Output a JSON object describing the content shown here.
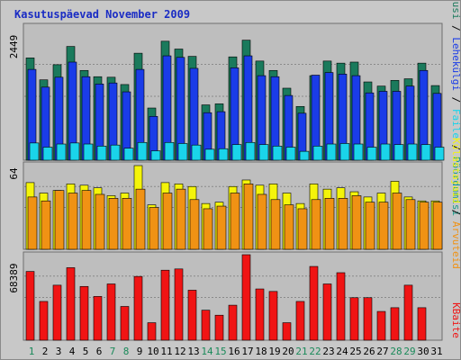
{
  "page": {
    "title": "Kasutuspäevad November 2009"
  },
  "chart_data": {
    "type": "bar",
    "title": "Kasutuspäevad November 2009",
    "categories": [
      "1",
      "2",
      "3",
      "4",
      "5",
      "6",
      "7",
      "8",
      "9",
      "10",
      "11",
      "12",
      "13",
      "14",
      "15",
      "16",
      "17",
      "18",
      "19",
      "20",
      "21",
      "22",
      "23",
      "24",
      "25",
      "26",
      "27",
      "28",
      "29",
      "30",
      "31"
    ],
    "weekend_days": [
      "1",
      "7",
      "8",
      "14",
      "15",
      "21",
      "22",
      "28",
      "29"
    ],
    "panels": [
      {
        "name": "traffic",
        "max_label": "2449",
        "ylim": [
          0,
          2449
        ],
        "series": [
          {
            "name": "Külastusi",
            "color": "#1a7a5c",
            "values": [
              1960,
              1540,
              1830,
              2180,
              1720,
              1600,
              1590,
              1450,
              2050,
              1000,
              2280,
              2130,
              1990,
              1060,
              1080,
              1980,
              2300,
              1900,
              1720,
              1380,
              1030,
              1620,
              1900,
              1860,
              1880,
              1500,
              1420,
              1530,
              1560,
              1860,
              1430
            ]
          },
          {
            "name": "Lehekülgi",
            "color": "#1a3ce8",
            "values": [
              1740,
              1400,
              1590,
              1880,
              1600,
              1460,
              1480,
              1310,
              1740,
              840,
              2000,
              1970,
              1760,
              910,
              930,
              1770,
              2000,
              1620,
              1600,
              1240,
              900,
              1630,
              1680,
              1650,
              1620,
              1290,
              1320,
              1320,
              1420,
              1720,
              1280
            ]
          },
          {
            "name": "Faile",
            "color": "#1ad4ea",
            "values": [
              330,
              250,
              310,
              330,
              310,
              270,
              290,
              230,
              340,
              180,
              340,
              320,
              290,
              210,
              220,
              300,
              340,
              300,
              270,
              250,
              170,
              270,
              310,
              320,
              310,
              250,
              310,
              300,
              310,
              300,
              250
            ]
          }
        ],
        "legend": [
          "Külastusi",
          "Lehekülgi",
          "Faile",
          "Pöördumisi"
        ]
      },
      {
        "name": "hosts",
        "max_label": "64",
        "ylim": [
          0,
          64
        ],
        "series": [
          {
            "name": "Külastajaid",
            "color": "#f4f40a",
            "values": [
              51,
              43,
              45,
              50,
              49,
              47,
              41,
              43,
              64,
              34,
              51,
              50,
              48,
              35,
              36,
              48,
              53,
              49,
              50,
              43,
              35,
              50,
              46,
              47,
              44,
              40,
              43,
              52,
              40,
              37,
              37
            ]
          },
          {
            "name": "Arvuteid",
            "color": "#f09214",
            "values": [
              40,
              37,
              45,
              43,
              45,
              42,
              39,
              39,
              46,
              32,
              43,
              46,
              38,
              31,
              33,
              43,
              50,
              42,
              38,
              34,
              31,
              38,
              39,
              39,
              41,
              36,
              36,
              43,
              38,
              36,
              36
            ]
          }
        ],
        "legend": [
          "Külastajaid",
          "Arvuteid"
        ]
      },
      {
        "name": "kbytes",
        "max_label": "68389",
        "ylim": [
          0,
          68389
        ],
        "series": [
          {
            "name": "KBaite",
            "color": "#f01414",
            "values": [
              55000,
              31000,
              44000,
              58000,
              43000,
              35000,
              45000,
              27000,
              51000,
              14000,
              56000,
              57000,
              40000,
              24000,
              20000,
              28000,
              68389,
              41000,
              39000,
              14000,
              31000,
              59000,
              45000,
              54000,
              34000,
              34000,
              23000,
              26000,
              44000,
              26000,
              0
            ]
          }
        ],
        "legend": [
          "KBaite"
        ]
      }
    ]
  }
}
